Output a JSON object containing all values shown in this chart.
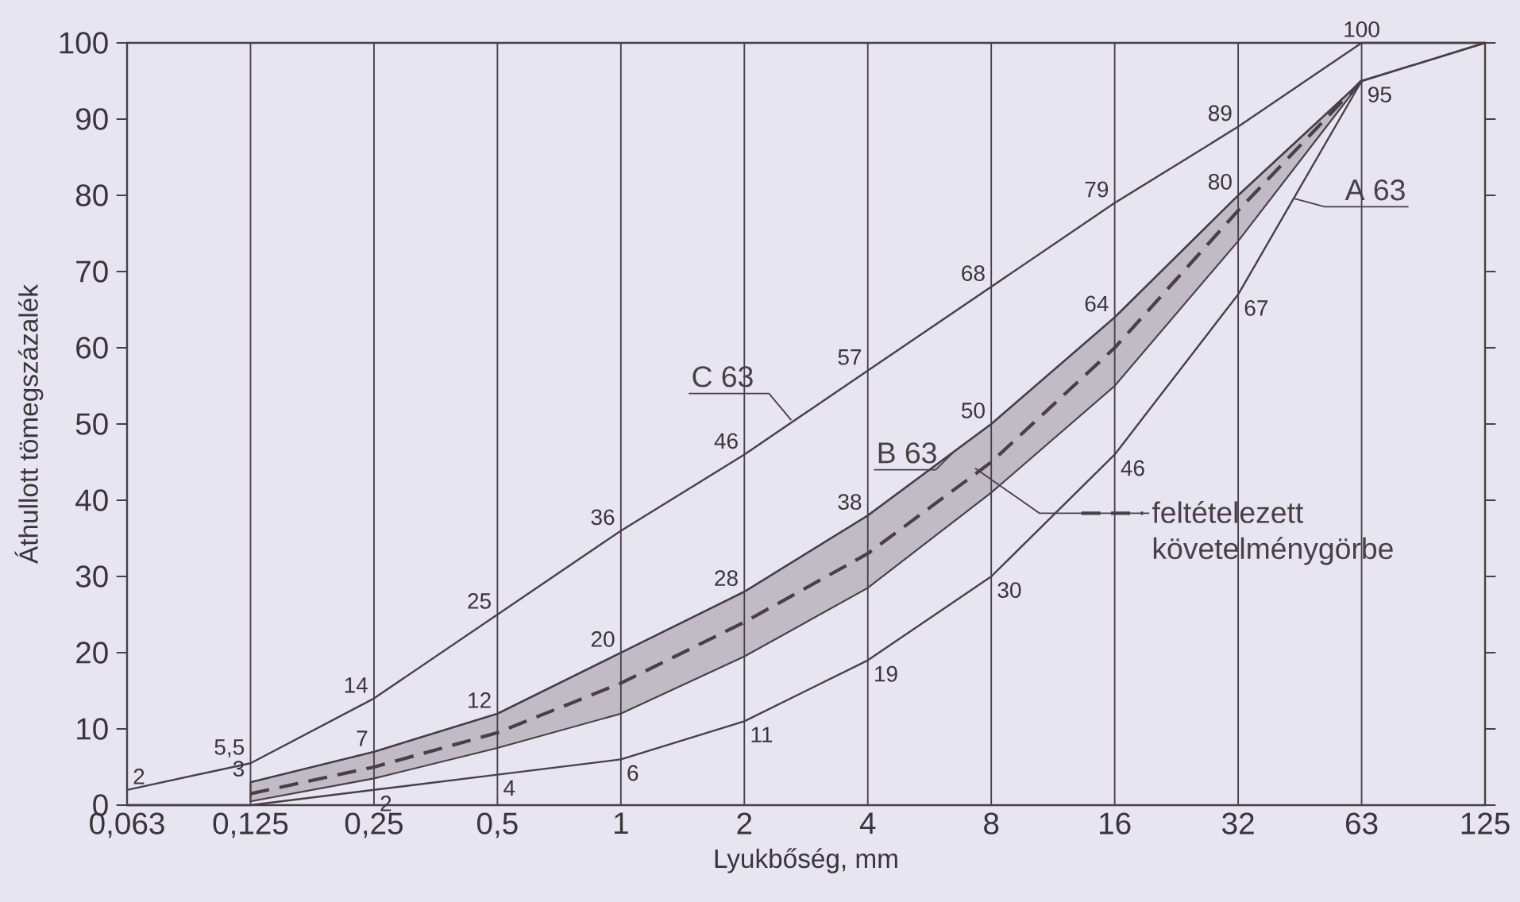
{
  "chart_data": {
    "type": "line",
    "xlabel": "Lyukbőség, mm",
    "ylabel": "Áthullott tömegszázalék",
    "categories": [
      "0,063",
      "0,125",
      "0,25",
      "0,5",
      "1",
      "2",
      "4",
      "8",
      "16",
      "32",
      "63",
      "125"
    ],
    "ylim": [
      0,
      100
    ],
    "yticks": [
      0,
      10,
      20,
      30,
      40,
      50,
      60,
      70,
      80,
      90,
      100
    ],
    "grid": "x",
    "series": [
      {
        "name": "C 63",
        "color": "#4a3f48",
        "values": [
          2,
          5.5,
          14,
          25,
          36,
          46,
          57,
          68,
          79,
          89,
          100,
          100
        ],
        "value_labels": [
          "2",
          "5,5",
          "14",
          "25",
          "36",
          "46",
          "57",
          "68",
          "79",
          "89",
          "100",
          null
        ]
      },
      {
        "name": "B 63",
        "color": "#4a3f48",
        "values": [
          null,
          3,
          7,
          12,
          20,
          28,
          38,
          50,
          64,
          80,
          95,
          100
        ],
        "value_labels": [
          null,
          "3",
          "7",
          "12",
          "20",
          "28",
          "38",
          "50",
          "64",
          "80",
          null,
          null
        ]
      },
      {
        "name": "A 63",
        "color": "#4a3f48",
        "values": [
          0,
          0,
          2,
          4,
          6,
          11,
          19,
          30,
          46,
          67,
          95,
          100
        ],
        "value_labels": [
          null,
          null,
          "2",
          "4",
          "6",
          "11",
          "19",
          "30",
          "46",
          "67",
          "95",
          null
        ]
      },
      {
        "name": "feltételezett követelménygörbe",
        "color": "#4a3f48",
        "line_style": "dashed",
        "values": [
          null,
          1.5,
          5,
          9.5,
          16,
          24,
          33,
          45,
          60,
          78,
          95,
          null
        ],
        "lower": [
          null,
          0.5,
          3.5,
          7.5,
          12,
          19.5,
          28.5,
          41,
          55,
          74,
          95,
          null
        ],
        "upper": [
          null,
          3,
          7,
          12,
          20,
          28,
          38,
          50,
          64,
          80,
          95,
          null
        ]
      }
    ]
  }
}
